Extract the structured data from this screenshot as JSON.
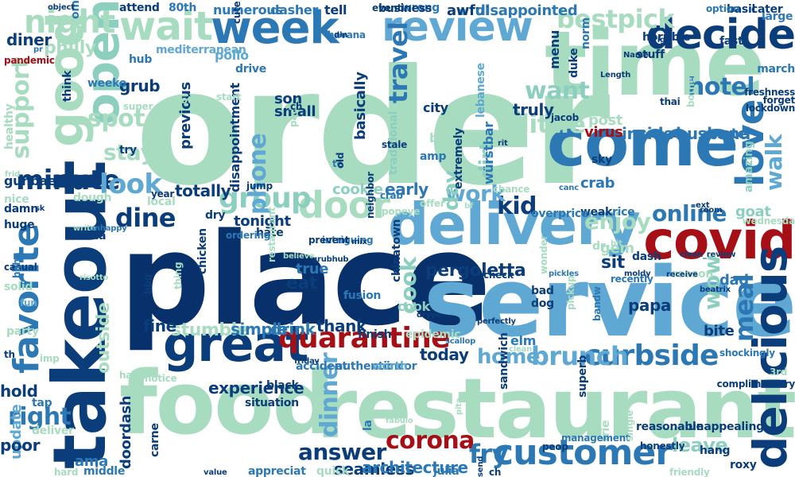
{
  "palette": {
    "mint": "#a8dcc0",
    "light_blue": "#5fa8d3",
    "mid_blue": "#2b78b5",
    "dark_blue": "#0b3d7a",
    "navy": "#08306b",
    "teal_green": "#8ccfbf",
    "red": "#a50f15"
  },
  "words": [
    {
      "text": "order",
      "color": "mint"
    },
    {
      "text": "place",
      "color": "navy"
    },
    {
      "text": "service",
      "color": "light_blue"
    },
    {
      "text": "restaurant",
      "color": "mint"
    },
    {
      "text": "food",
      "color": "mint"
    },
    {
      "text": "time",
      "color": "mint"
    },
    {
      "text": "come",
      "color": "mid_blue"
    },
    {
      "text": "takeout",
      "color": "dark_blue"
    },
    {
      "text": "delivery",
      "color": "light_blue"
    },
    {
      "text": "covid",
      "color": "red"
    },
    {
      "text": "great",
      "color": "dark_blue"
    },
    {
      "text": "week",
      "color": "mid_blue"
    },
    {
      "text": "review",
      "color": "light_blue"
    },
    {
      "text": "decide",
      "color": "dark_blue"
    },
    {
      "text": "wait",
      "color": "mint"
    },
    {
      "text": "delicious",
      "color": "dark_blue"
    },
    {
      "text": "good",
      "color": "mint"
    },
    {
      "text": "open",
      "color": "teal_green"
    },
    {
      "text": "customer",
      "color": "mid_blue"
    },
    {
      "text": "quarantine",
      "color": "red"
    },
    {
      "text": "favorite",
      "color": "mid_blue"
    },
    {
      "text": "love",
      "color": "mid_blue"
    },
    {
      "text": "corona",
      "color": "red"
    },
    {
      "text": "curbside",
      "color": "mid_blue"
    },
    {
      "text": "brunch",
      "color": "light_blue"
    },
    {
      "text": "door",
      "color": "mint"
    },
    {
      "text": "answer",
      "color": "dark_blue"
    },
    {
      "text": "minute",
      "color": "dark_blue"
    },
    {
      "text": "group",
      "color": "teal_green"
    },
    {
      "text": "night",
      "color": "mint"
    },
    {
      "text": "virus",
      "color": "red"
    },
    {
      "text": "dine",
      "color": "dark_blue"
    },
    {
      "text": "spot",
      "color": "mint"
    },
    {
      "text": "look",
      "color": "light_blue"
    },
    {
      "text": "stay",
      "color": "mint"
    },
    {
      "text": "right",
      "color": "mid_blue"
    },
    {
      "text": "kid",
      "color": "dark_blue"
    },
    {
      "text": "online",
      "color": "mid_blue"
    },
    {
      "text": "meal",
      "color": "mid_blue"
    },
    {
      "text": "dinner",
      "color": "light_blue"
    },
    {
      "text": "cook",
      "color": "teal_green"
    },
    {
      "text": "fry",
      "color": "mid_blue"
    },
    {
      "text": "little",
      "color": "mint"
    },
    {
      "text": "phone",
      "color": "light_blue"
    },
    {
      "text": "travel",
      "color": "mid_blue"
    },
    {
      "text": "support",
      "color": "mint"
    },
    {
      "text": "hotel",
      "color": "mid_blue"
    },
    {
      "text": "bestpick",
      "color": "mint"
    },
    {
      "text": "work",
      "color": "light_blue"
    },
    {
      "text": "enjoy",
      "color": "mint"
    },
    {
      "text": "want",
      "color": "teal_green"
    },
    {
      "text": "walk",
      "color": "light_blue"
    },
    {
      "text": "home",
      "color": "light_blue"
    },
    {
      "text": "leave",
      "color": "teal_green"
    },
    {
      "text": "wow",
      "color": "teal_green"
    },
    {
      "text": "day",
      "color": "teal_green"
    },
    {
      "text": "dirt",
      "color": "teal_green"
    },
    {
      "text": "inside",
      "color": "mid_blue"
    },
    {
      "text": "husband",
      "color": "mid_blue"
    },
    {
      "text": "pergoletta",
      "color": "dark_blue"
    },
    {
      "text": "experience",
      "color": "dark_blue"
    },
    {
      "text": "today",
      "color": "dark_blue"
    },
    {
      "text": "stumble",
      "color": "mint"
    },
    {
      "text": "thank",
      "color": "dark_blue"
    },
    {
      "text": "fine",
      "color": "dark_blue"
    },
    {
      "text": "bite",
      "color": "dark_blue"
    },
    {
      "text": "eat",
      "color": "dark_blue"
    },
    {
      "text": "sit",
      "color": "dark_blue"
    },
    {
      "text": "gem",
      "color": "mint"
    },
    {
      "text": "papa",
      "color": "dark_blue"
    },
    {
      "text": "hold",
      "color": "dark_blue"
    },
    {
      "text": "outside",
      "color": "mint"
    },
    {
      "text": "seamless",
      "color": "dark_blue"
    },
    {
      "text": "ama",
      "color": "mid_blue"
    },
    {
      "text": "update",
      "color": "light_blue"
    },
    {
      "text": "poor",
      "color": "dark_blue"
    },
    {
      "text": "doordash",
      "color": "dark_blue"
    },
    {
      "text": "architecture",
      "color": "mid_blue"
    },
    {
      "text": "drink",
      "color": "mid_blue"
    },
    {
      "text": "simple",
      "color": "mid_blue"
    },
    {
      "text": "totally",
      "color": "dark_blue"
    },
    {
      "text": "tonight",
      "color": "dark_blue"
    },
    {
      "text": "cookie",
      "color": "teal_green"
    },
    {
      "text": "early",
      "color": "mid_blue"
    },
    {
      "text": "true",
      "color": "mid_blue"
    },
    {
      "text": "dad",
      "color": "mid_blue"
    },
    {
      "text": "crab",
      "color": "mid_blue"
    },
    {
      "text": "goat",
      "color": "teal_green"
    },
    {
      "text": "note",
      "color": "mid_blue"
    },
    {
      "text": "amazing",
      "color": "teal_green"
    },
    {
      "text": "philly",
      "color": "mint"
    },
    {
      "text": "diner",
      "color": "dark_blue"
    },
    {
      "text": "grub",
      "color": "dark_blue"
    },
    {
      "text": "son",
      "color": "dark_blue"
    },
    {
      "text": "small",
      "color": "dark_blue"
    },
    {
      "text": "previous",
      "color": "dark_blue"
    },
    {
      "text": "truly",
      "color": "dark_blue"
    },
    {
      "text": "post",
      "color": "mint"
    },
    {
      "text": "dasher",
      "color": "mid_blue"
    },
    {
      "text": "tell",
      "color": "dark_blue"
    },
    {
      "text": "awful",
      "color": "dark_blue"
    },
    {
      "text": "disappointed",
      "color": "mid_blue"
    },
    {
      "text": "numerous",
      "color": "mid_blue"
    },
    {
      "text": "attend",
      "color": "dark_blue"
    },
    {
      "text": "80th",
      "color": "mid_blue"
    },
    {
      "text": "wrong",
      "color": "mid_blue"
    },
    {
      "text": "stuff",
      "color": "dark_blue"
    },
    {
      "text": "march",
      "color": "mid_blue"
    },
    {
      "text": "disappointment",
      "color": "dark_blue"
    },
    {
      "text": "basically",
      "color": "dark_blue"
    },
    {
      "text": "bland",
      "color": "mint"
    },
    {
      "text": "lebanese",
      "color": "light_blue"
    },
    {
      "text": "würstbar",
      "color": "mid_blue"
    },
    {
      "text": "traditional",
      "color": "teal_green"
    },
    {
      "text": "gunbae",
      "color": "dark_blue"
    },
    {
      "text": "damn",
      "color": "dark_blue"
    },
    {
      "text": "huge",
      "color": "dark_blue"
    },
    {
      "text": "nice",
      "color": "mint"
    },
    {
      "text": "asada",
      "color": "dark_blue"
    },
    {
      "text": "dough",
      "color": "mint"
    },
    {
      "text": "local",
      "color": "mint"
    },
    {
      "text": "chicken",
      "color": "dark_blue"
    },
    {
      "text": "dry",
      "color": "dark_blue"
    },
    {
      "text": "hate",
      "color": "dark_blue"
    },
    {
      "text": "authentic",
      "color": "mid_blue"
    },
    {
      "text": "incor",
      "color": "mid_blue"
    },
    {
      "text": "cook",
      "color": "teal_green"
    },
    {
      "text": "reason",
      "color": "mint"
    },
    {
      "text": "elm",
      "color": "mid_blue"
    },
    {
      "text": "dog",
      "color": "dark_blue"
    },
    {
      "text": "bad",
      "color": "dark_blue"
    },
    {
      "text": "sandwich",
      "color": "dark_blue"
    },
    {
      "text": "reasonable",
      "color": "dark_blue"
    },
    {
      "text": "unappealing",
      "color": "dark_blue"
    },
    {
      "text": "roxy",
      "color": "dark_blue"
    },
    {
      "text": "hang",
      "color": "dark_blue"
    },
    {
      "text": "rice",
      "color": "mid_blue"
    },
    {
      "text": "weak",
      "color": "dark_blue"
    },
    {
      "text": "overprice",
      "color": "mid_blue"
    },
    {
      "text": "dash",
      "color": "dark_blue"
    },
    {
      "text": "dr",
      "color": "mint"
    },
    {
      "text": "pollo",
      "color": "light_blue"
    },
    {
      "text": "drive",
      "color": "mid_blue"
    },
    {
      "text": "hub",
      "color": "mid_blue"
    },
    {
      "text": "mediterranean",
      "color": "light_blue"
    },
    {
      "text": "weeke",
      "color": "mid_blue"
    },
    {
      "text": "try",
      "color": "dark_blue"
    },
    {
      "text": "solid",
      "color": "mint"
    },
    {
      "text": "casual",
      "color": "dark_blue"
    },
    {
      "text": "fun",
      "color": "light_blue"
    },
    {
      "text": "party",
      "color": "mint"
    },
    {
      "text": "th",
      "color": "dark_blue"
    },
    {
      "text": "imp",
      "color": "mint"
    },
    {
      "text": "happ",
      "color": "mint"
    },
    {
      "text": "tap",
      "color": "mid_blue"
    },
    {
      "text": "deliver",
      "color": "mint"
    },
    {
      "text": "hard",
      "color": "mint"
    },
    {
      "text": "middle",
      "color": "mid_blue"
    },
    {
      "text": "carne",
      "color": "dark_blue"
    },
    {
      "text": "appreciat",
      "color": "mid_blue"
    },
    {
      "text": "situation",
      "color": "dark_blue"
    },
    {
      "text": "black",
      "color": "dark_blue"
    },
    {
      "text": "la",
      "color": "mid_blue"
    },
    {
      "text": "quick",
      "color": "mint"
    },
    {
      "text": "julia",
      "color": "mid_blue"
    },
    {
      "text": "ch",
      "color": "dark_blue"
    },
    {
      "text": "frie",
      "color": "mint"
    },
    {
      "text": "finish",
      "color": "dark_blue"
    },
    {
      "text": "epidemic",
      "color": "mint"
    },
    {
      "text": "worth",
      "color": "light_blue"
    },
    {
      "text": "fabulo",
      "color": "mint"
    },
    {
      "text": "fusion",
      "color": "mid_blue"
    },
    {
      "text": "chinatown",
      "color": "dark_blue"
    },
    {
      "text": "accident",
      "color": "mid_blue"
    },
    {
      "text": "think",
      "color": "dark_blue"
    },
    {
      "text": "om",
      "color": "mid_blue"
    },
    {
      "text": "pandemic",
      "color": "red"
    },
    {
      "text": "healthy",
      "color": "mint"
    },
    {
      "text": "super",
      "color": "mint"
    },
    {
      "text": "horrible",
      "color": "dark_blue"
    },
    {
      "text": "large",
      "color": "mid_blue"
    },
    {
      "text": "fast",
      "color": "dark_blue"
    },
    {
      "text": "cater",
      "color": "dark_blue"
    },
    {
      "text": "basil",
      "color": "dark_blue"
    },
    {
      "text": "business",
      "color": "dark_blue"
    },
    {
      "text": "havana",
      "color": "mid_blue"
    },
    {
      "text": "event",
      "color": "dark_blue"
    },
    {
      "text": "duke",
      "color": "dark_blue"
    },
    {
      "text": "norm",
      "color": "mid_blue"
    },
    {
      "text": "menu",
      "color": "dark_blue"
    },
    {
      "text": "city",
      "color": "dark_blue"
    },
    {
      "text": "amp",
      "color": "mid_blue"
    },
    {
      "text": "te",
      "color": "mid_blue"
    },
    {
      "text": "old",
      "color": "dark_blue"
    },
    {
      "text": "sky",
      "color": "dark_blue"
    },
    {
      "text": "extremely",
      "color": "dark_blue"
    },
    {
      "text": "crab",
      "color": "mid_blue"
    },
    {
      "text": "popeye",
      "color": "mint"
    },
    {
      "text": "offer",
      "color": "mint"
    },
    {
      "text": "chance",
      "color": "mint"
    },
    {
      "text": "year",
      "color": "dark_blue"
    },
    {
      "text": "jump",
      "color": "dark_blue"
    },
    {
      "text": "restaurant",
      "color": "mint"
    },
    {
      "text": "bbq",
      "color": "dark_blue"
    },
    {
      "text": "thing",
      "color": "mint"
    },
    {
      "text": "notice",
      "color": "mint"
    },
    {
      "text": "intriguing",
      "color": "mid_blue"
    },
    {
      "text": "prevent",
      "color": "dark_blue"
    },
    {
      "text": "ordering",
      "color": "mid_blue"
    },
    {
      "text": "elote",
      "color": "mint"
    },
    {
      "text": "jacob",
      "color": "dark_blue"
    },
    {
      "text": "thai",
      "color": "dark_blue"
    },
    {
      "text": "bother",
      "color": "mint"
    },
    {
      "text": "lockdown",
      "color": "dark_blue"
    },
    {
      "text": "wonder",
      "color": "mint"
    },
    {
      "text": "pickup",
      "color": "mint"
    },
    {
      "text": "recently",
      "color": "mid_blue"
    },
    {
      "text": "management",
      "color": "mid_blue"
    },
    {
      "text": "honestly",
      "color": "dark_blue"
    },
    {
      "text": "friendly",
      "color": "mint"
    },
    {
      "text": "single",
      "color": "mint"
    },
    {
      "text": "superb",
      "color": "dark_blue"
    },
    {
      "text": "complimentary",
      "color": "dark_blue"
    },
    {
      "text": "freshness",
      "color": "dark_blue"
    },
    {
      "text": "forget",
      "color": "dark_blue"
    },
    {
      "text": "shockingly",
      "color": "mid_blue"
    },
    {
      "text": "option",
      "color": "mid_blue"
    },
    {
      "text": "cute",
      "color": "dark_blue"
    },
    {
      "text": "object",
      "color": "dark_blue"
    },
    {
      "text": "risotto",
      "color": "mint"
    },
    {
      "text": "haha",
      "color": "mid_blue"
    },
    {
      "text": "pickles",
      "color": "mid_blue"
    },
    {
      "text": "receive",
      "color": "dark_blue"
    },
    {
      "text": "clean_review",
      "color": "dark_blue"
    },
    {
      "text": "neighbor",
      "color": "dark_blue"
    },
    {
      "text": "mix",
      "color": "dark_blue"
    },
    {
      "text": "believe",
      "color": "mint"
    },
    {
      "text": "grubhub",
      "color": "dark_blue"
    },
    {
      "text": "scallop",
      "color": "mid_blue"
    },
    {
      "text": "value",
      "color": "dark_blue"
    },
    {
      "text": "peop",
      "color": "dark_blue"
    },
    {
      "text": "pita",
      "color": "mint"
    },
    {
      "text": "clean",
      "color": "mint"
    },
    {
      "text": "friday",
      "color": "dark_blue"
    },
    {
      "text": "stale",
      "color": "dark_blue"
    },
    {
      "text": "check",
      "color": "dark_blue"
    },
    {
      "text": "start",
      "color": "mint"
    },
    {
      "text": "use",
      "color": "mint"
    },
    {
      "text": "pad",
      "color": "mint"
    },
    {
      "text": "frid",
      "color": "mint"
    },
    {
      "text": "wednesda",
      "color": "mint"
    },
    {
      "text": "3rd",
      "color": "mint"
    },
    {
      "text": "din",
      "color": "dark_blue"
    },
    {
      "text": "pr",
      "color": "mid_blue"
    },
    {
      "text": "canc",
      "color": "mid_blue"
    },
    {
      "text": "rit",
      "color": "dark_blue"
    },
    {
      "text": "rig",
      "color": "dark_blue"
    },
    {
      "text": "Name",
      "color": "dark_blue"
    },
    {
      "text": "Length",
      "color": "dark_blue"
    },
    {
      "text": "bandw",
      "color": "mid_blue"
    },
    {
      "text": "beatrix",
      "color": "dark_blue"
    },
    {
      "text": "moldy",
      "color": "dark_blue"
    },
    {
      "text": "sk",
      "color": "dark_blue"
    },
    {
      "text": "write",
      "color": "mint"
    },
    {
      "text": "unhappy",
      "color": "mid_blue"
    },
    {
      "text": "room",
      "color": "dark_blue"
    },
    {
      "text": "ext",
      "color": "dark_blue"
    },
    {
      "text": "bf",
      "color": "mint"
    },
    {
      "text": "dryye",
      "color": "dark_blue"
    },
    {
      "text": "perfectly",
      "color": "dark_blue"
    },
    {
      "text": "bit",
      "color": "mint"
    },
    {
      "text": "ch",
      "color": "dark_blue"
    },
    {
      "text": "send",
      "color": "dark_blue"
    },
    {
      "text": "lo",
      "color": "mint"
    },
    {
      "text": "munchtown",
      "color": "dark_blue"
    },
    {
      "text": "justin",
      "color": "dark_blue"
    },
    {
      "text": "line",
      "color": "mid_blue"
    },
    {
      "text": "akif",
      "color": "dark_blue"
    }
  ]
}
